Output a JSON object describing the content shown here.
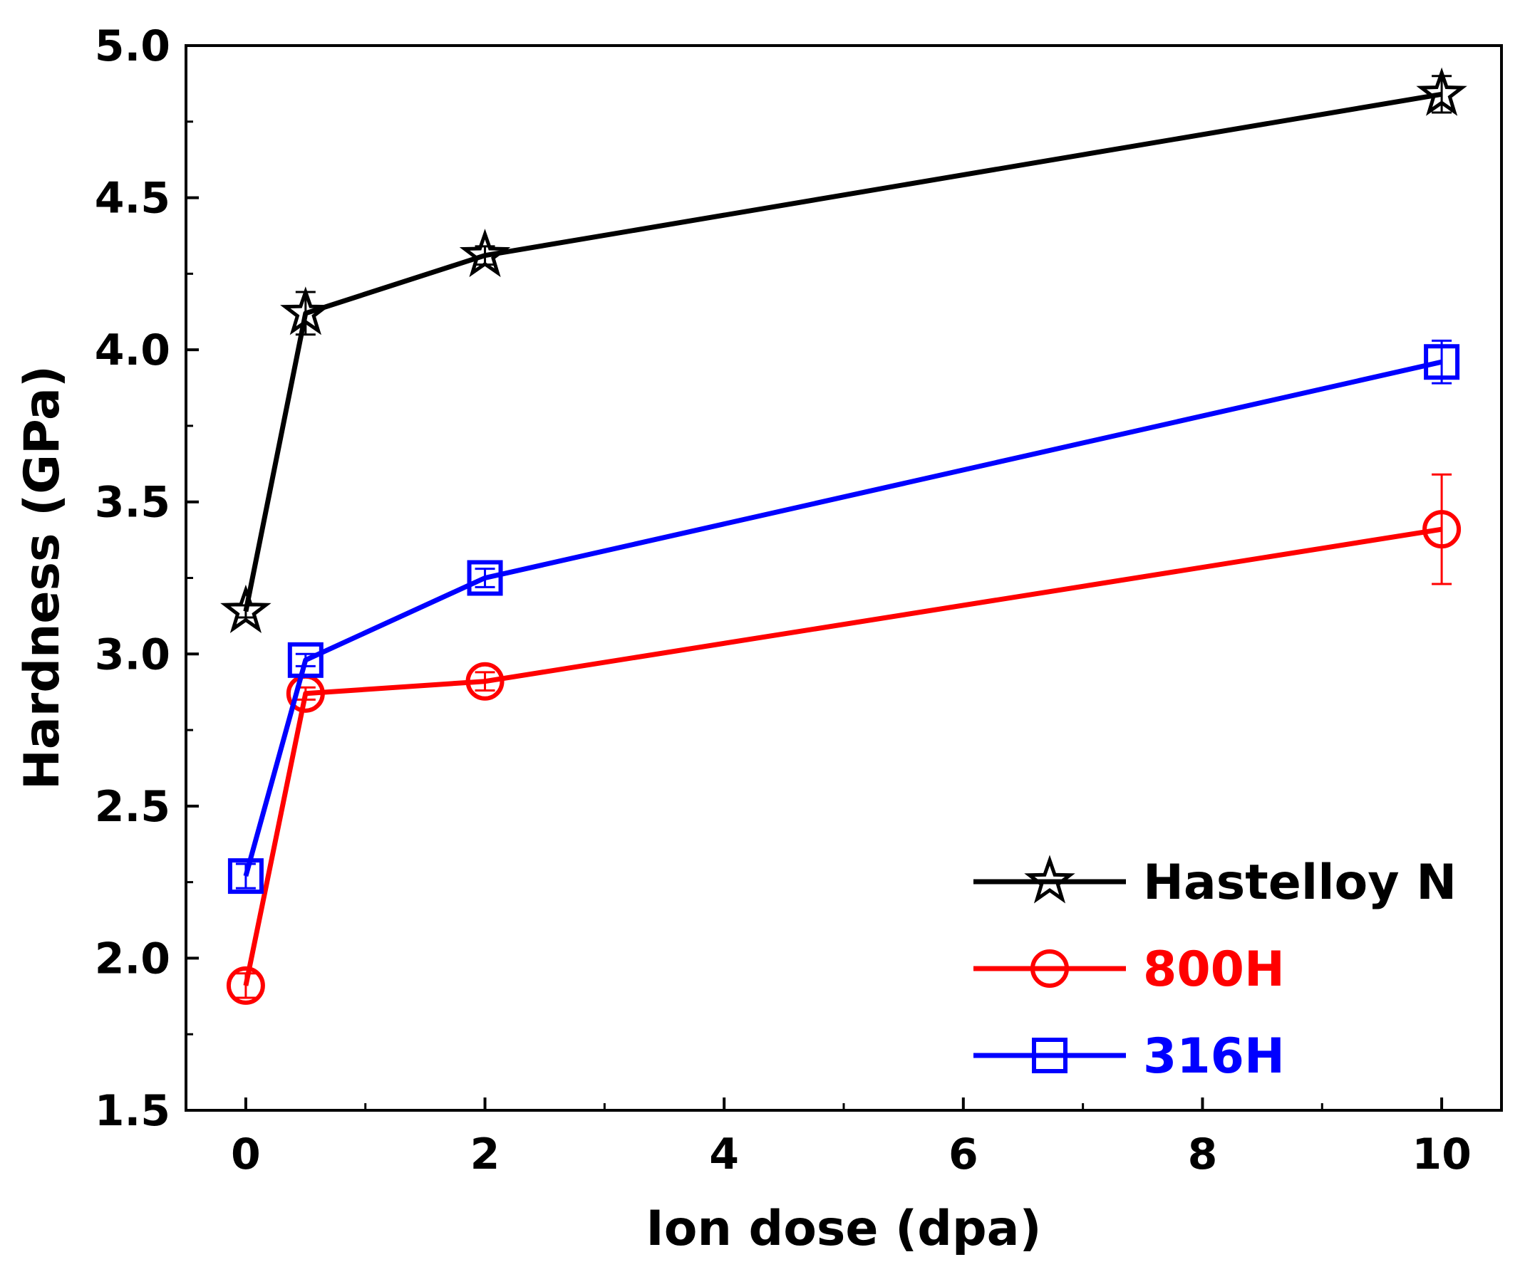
{
  "chart_data": {
    "type": "line",
    "title": "",
    "xlabel": "Ion dose (dpa)",
    "ylabel": "Hardness (GPa)",
    "xlim": [
      -0.5,
      10.5
    ],
    "ylim": [
      1.5,
      5.0
    ],
    "xticks": [
      0,
      2,
      4,
      6,
      8,
      10
    ],
    "xtick_labels": [
      "0",
      "2",
      "4",
      "6",
      "8",
      "10"
    ],
    "yticks": [
      1.5,
      2.0,
      2.5,
      3.0,
      3.5,
      4.0,
      4.5,
      5.0
    ],
    "ytick_labels": [
      "1.5",
      "2.0",
      "2.5",
      "3.0",
      "3.5",
      "4.0",
      "4.5",
      "5.0"
    ],
    "grid": false,
    "legend_position": "bottom-right",
    "series": [
      {
        "name": "Hastelloy N",
        "color": "#000000",
        "marker": "star",
        "x": [
          0,
          0.5,
          2,
          10
        ],
        "values": [
          3.14,
          4.12,
          4.31,
          4.84
        ],
        "errors": [
          0.02,
          0.07,
          0.03,
          0.06
        ]
      },
      {
        "name": "800H",
        "color": "#ff0000",
        "marker": "circle",
        "x": [
          0,
          0.5,
          2,
          10
        ],
        "values": [
          1.91,
          2.87,
          2.91,
          3.41
        ],
        "errors": [
          0.04,
          0.02,
          0.03,
          0.18
        ]
      },
      {
        "name": "316H",
        "color": "#0000ff",
        "marker": "square",
        "x": [
          0,
          0.5,
          2,
          10
        ],
        "values": [
          2.27,
          2.98,
          3.25,
          3.96
        ],
        "errors": [
          0.04,
          0.02,
          0.03,
          0.07
        ]
      }
    ]
  }
}
